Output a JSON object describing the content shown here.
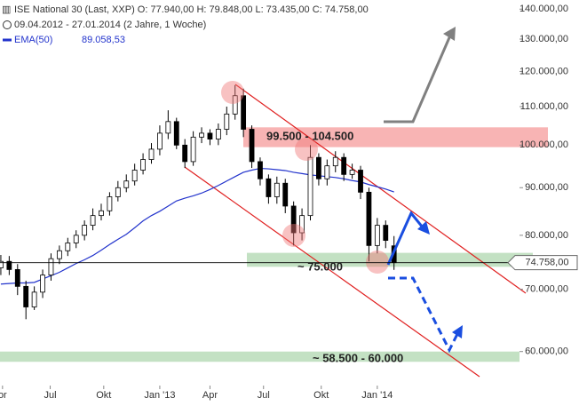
{
  "chart_data": {
    "type": "candlestick",
    "title": "ISE National 30 (Last, XXP)  O: 77.940,00  H: 79.848,00  L: 73.435,00  C: 74.758,00",
    "subtitle": "09.04.2012 - 27.01.2014 (2 Jahre, 1 Woche)",
    "log_scale": true,
    "xlim": [
      -0.1,
      62
    ],
    "xticks": [
      {
        "value": 0.2,
        "label": "or"
      },
      {
        "value": 5.9,
        "label": "Jul"
      },
      {
        "value": 12.3,
        "label": "Okt"
      },
      {
        "value": 19,
        "label": "Jan '13"
      },
      {
        "value": 25,
        "label": "Apr"
      },
      {
        "value": 31.4,
        "label": "Jul"
      },
      {
        "value": 38.3,
        "label": "Okt"
      },
      {
        "value": 45,
        "label": "Jan '14"
      }
    ],
    "ylim": [
      55400,
      143200
    ],
    "yticks": [
      {
        "value": 60000,
        "label": "60.000,00"
      },
      {
        "value": 70000,
        "label": "70.000,00"
      },
      {
        "value": 80000,
        "label": "80.000,00"
      },
      {
        "value": 90000,
        "label": "90.000,00"
      },
      {
        "value": 100000,
        "label": "100.000,00"
      },
      {
        "value": 110000,
        "label": "110.000,00"
      },
      {
        "value": 120000,
        "label": "120.000,00"
      },
      {
        "value": 130000,
        "label": "130.000,00"
      },
      {
        "value": 140000,
        "label": "140.000,00"
      }
    ],
    "up_color": "#ffffff",
    "down_color": "#000000",
    "open": [
      73800,
      75000,
      73500,
      70500,
      67000,
      69500,
      72500,
      75500,
      77000,
      78500,
      80000,
      82000,
      84000,
      85000,
      88000,
      90000,
      91500,
      94000,
      96500,
      99000,
      103000,
      106000,
      100000,
      96000,
      102000,
      103000,
      101500,
      104000,
      108000,
      113000,
      104000,
      96000,
      92000,
      88000,
      91000,
      86000,
      80500,
      84000,
      97000,
      92000,
      95000,
      97000,
      93000,
      94000,
      89000,
      78000,
      82000,
      77940
    ],
    "high": [
      76200,
      76000,
      74500,
      71500,
      70500,
      73500,
      76500,
      78000,
      79500,
      81000,
      83000,
      85500,
      86500,
      89000,
      91500,
      93000,
      95500,
      98000,
      100500,
      105000,
      109000,
      107000,
      101500,
      103500,
      104500,
      104000,
      105500,
      110000,
      116000,
      115000,
      105000,
      97000,
      93000,
      92500,
      92000,
      87000,
      85500,
      100000,
      98000,
      96500,
      98500,
      98000,
      95500,
      95000,
      90000,
      83500,
      83000,
      79848
    ],
    "low": [
      72500,
      72500,
      69000,
      65000,
      66500,
      68500,
      71500,
      74500,
      76000,
      77500,
      79000,
      81000,
      83000,
      84000,
      87000,
      89000,
      90500,
      93000,
      95500,
      97500,
      101500,
      99000,
      94500,
      95000,
      100500,
      100000,
      100000,
      102500,
      106500,
      102000,
      94500,
      90500,
      86500,
      86500,
      84500,
      78000,
      79000,
      83000,
      90500,
      90500,
      93500,
      91500,
      92000,
      87500,
      75000,
      76500,
      77500,
      73435
    ],
    "close": [
      75000,
      73500,
      70500,
      67000,
      69500,
      72500,
      75500,
      77000,
      78500,
      80000,
      82000,
      84000,
      85000,
      88000,
      90000,
      91500,
      94000,
      96500,
      99000,
      103000,
      106000,
      100000,
      96000,
      102000,
      103000,
      101500,
      104000,
      108000,
      113000,
      104000,
      96000,
      92000,
      88000,
      91000,
      86000,
      80500,
      84000,
      97000,
      92000,
      95000,
      97000,
      93000,
      94000,
      89000,
      78000,
      82000,
      79000,
      74758
    ],
    "last_label": "74.758,00",
    "series": [
      {
        "name": "EMA(50)",
        "color": "#2233cc",
        "value_label": "89.058,53",
        "values": [
          70900,
          71000,
          71100,
          71100,
          71200,
          71800,
          72400,
          73000,
          73800,
          74600,
          75300,
          76100,
          77100,
          78200,
          79200,
          80200,
          81500,
          82900,
          84000,
          84900,
          86000,
          87100,
          87700,
          88200,
          88800,
          89600,
          90500,
          91500,
          92500,
          93500,
          94000,
          94400,
          94300,
          94100,
          93900,
          93500,
          93200,
          92900,
          92700,
          92500,
          92300,
          92000,
          91600,
          91300,
          90700,
          90200,
          89700,
          89058.53
        ]
      }
    ],
    "zones": [
      {
        "label": "99.500 - 104.500",
        "range": [
          99500,
          104500
        ],
        "color": "#f8b4b4"
      },
      {
        "label": "~ 75.000",
        "range": [
          74000,
          76600
        ],
        "color": "#b8dcb8"
      },
      {
        "label": "~ 58.500 - 60.000",
        "range": [
          58500,
          60000
        ],
        "color": "#b8dcb8"
      }
    ]
  }
}
